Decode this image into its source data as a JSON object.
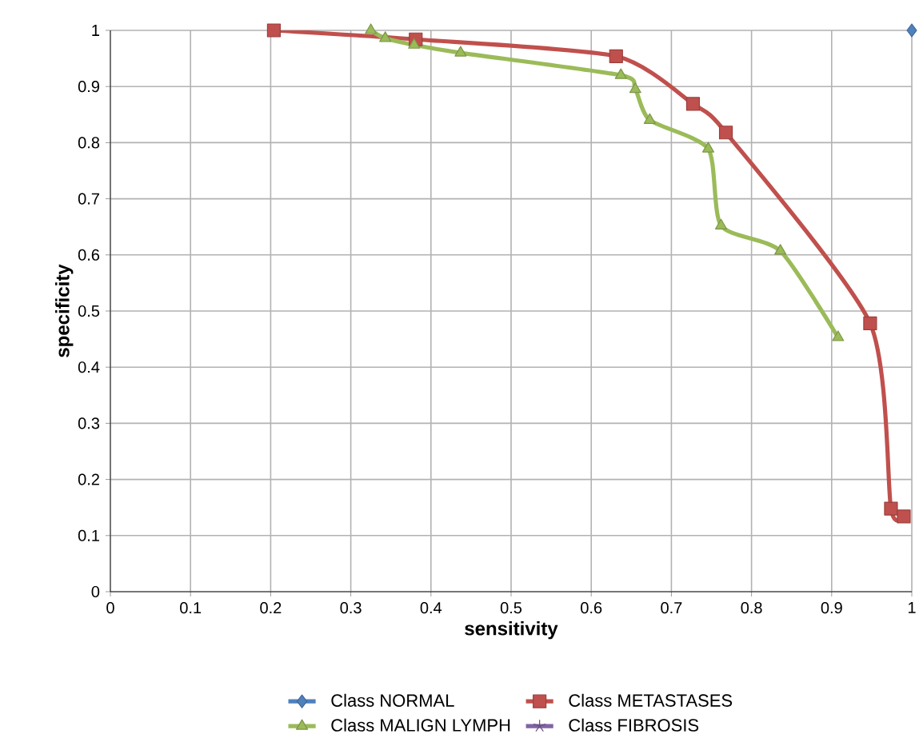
{
  "chart_data": {
    "type": "line",
    "xlabel": "sensitivity",
    "ylabel": "specificity",
    "xlim": [
      0,
      1
    ],
    "ylim": [
      0,
      1
    ],
    "xticks": [
      0,
      0.1,
      0.2,
      0.3,
      0.4,
      0.5,
      0.6,
      0.7,
      0.8,
      0.9,
      1
    ],
    "yticks": [
      0,
      0.1,
      0.2,
      0.3,
      0.4,
      0.5,
      0.6,
      0.7,
      0.8,
      0.9,
      1
    ],
    "grid": true,
    "legend": "bottom",
    "series": [
      {
        "name": "Class NORMAL",
        "color": "#4f81bd",
        "marker": "diamond",
        "x": [
          1
        ],
        "values": [
          1
        ]
      },
      {
        "name": "Class METASTASES",
        "color": "#c0504d",
        "marker": "square",
        "x": [
          0.204,
          0.381,
          0.631,
          0.727,
          0.768,
          0.948,
          0.974,
          0.99
        ],
        "values": [
          1,
          0.984,
          0.954,
          0.869,
          0.818,
          0.478,
          0.148,
          0.134
        ]
      },
      {
        "name": "Class MALIGN  LYMPH",
        "color": "#9bbb59",
        "marker": "triangle",
        "x": [
          0.325,
          0.343,
          0.379,
          0.437,
          0.637,
          0.655,
          0.673,
          0.746,
          0.762,
          0.836,
          0.908
        ],
        "values": [
          1,
          0.986,
          0.974,
          0.96,
          0.92,
          0.895,
          0.84,
          0.789,
          0.652,
          0.607,
          0.453
        ]
      },
      {
        "name": "Class FIBROSIS",
        "color": "#8064a2",
        "marker": "star"
      }
    ]
  }
}
